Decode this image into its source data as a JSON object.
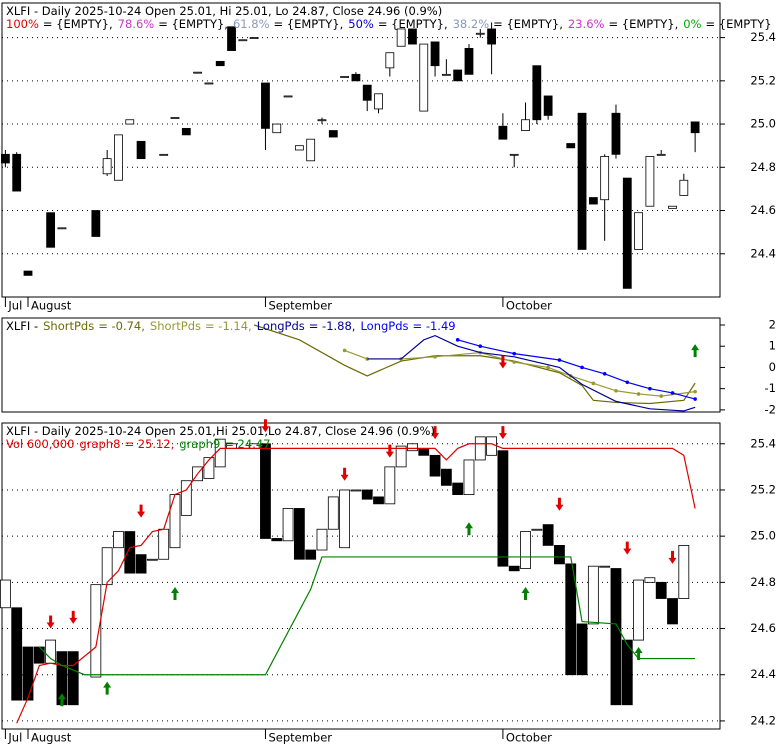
{
  "chart_data": [
    {
      "type": "candlestick",
      "title": "XLFI - Daily 2025-10-24 Open 25.01, Hi 25.01, Lo 24.87, Close 24.96 (0.9%)",
      "fib_levels": [
        {
          "level": "100%",
          "text": "= {EMPTY},",
          "color": "#e00000"
        },
        {
          "level": "78.6%",
          "text": "= {EMPTY},",
          "color": "#cc33cc"
        },
        {
          "level": "61.8%",
          "text": "= {EMPTY},",
          "color": "#8899bb"
        },
        {
          "level": "50%",
          "text": "= {EMPTY},",
          "color": "#0000cc"
        },
        {
          "level": "38.2%",
          "text": "= {EMPTY},",
          "color": "#8899bb"
        },
        {
          "level": "23.6%",
          "text": "= {EMPTY},",
          "color": "#cc33cc"
        },
        {
          "level": "0%",
          "text": "= {EMPTY}",
          "color": "#00aa00"
        }
      ],
      "x": [
        0,
        1,
        2,
        4,
        5,
        8,
        9,
        10,
        11,
        12,
        14,
        15,
        16,
        17,
        18,
        19,
        20,
        21,
        22,
        23,
        24,
        25,
        26,
        27,
        28,
        29,
        30,
        31,
        32,
        33,
        34,
        35,
        36,
        37,
        38,
        39,
        40,
        41,
        42,
        43,
        44,
        45,
        46,
        47,
        48,
        50,
        51,
        52,
        53,
        54,
        55,
        56,
        57,
        58,
        59,
        60,
        61
      ],
      "open": [
        24.86,
        24.86,
        24.32,
        24.59,
        24.52,
        24.6,
        24.77,
        24.74,
        25.0,
        24.92,
        24.86,
        25.03,
        24.98,
        25.24,
        25.19,
        25.29,
        25.45,
        25.39,
        25.4,
        25.19,
        24.96,
        25.13,
        24.88,
        24.83,
        25.02,
        24.97,
        25.22,
        25.23,
        25.18,
        25.07,
        25.26,
        25.36,
        25.44,
        25.06,
        25.38,
        25.23,
        25.25,
        25.35,
        25.42,
        25.44,
        24.99,
        24.86,
        24.97,
        25.27,
        25.13,
        24.91,
        25.05,
        24.66,
        24.65,
        25.05,
        24.75,
        24.42,
        24.62,
        24.86,
        24.61,
        24.67,
        25.01
      ],
      "high": [
        24.88,
        24.87,
        24.32,
        24.59,
        24.52,
        24.6,
        24.88,
        24.95,
        25.02,
        24.92,
        24.86,
        25.03,
        24.98,
        25.24,
        25.19,
        25.29,
        25.45,
        25.39,
        25.4,
        25.19,
        25.0,
        25.13,
        24.9,
        24.93,
        25.03,
        24.97,
        25.22,
        25.24,
        25.18,
        25.14,
        25.33,
        25.44,
        25.44,
        25.37,
        25.38,
        25.3,
        25.25,
        25.37,
        25.44,
        25.47,
        25.05,
        24.86,
        25.1,
        25.27,
        25.13,
        24.91,
        25.05,
        24.66,
        24.86,
        25.09,
        24.75,
        24.59,
        24.85,
        24.88,
        24.62,
        24.77,
        25.01
      ],
      "low": [
        24.8,
        24.69,
        24.3,
        24.43,
        24.52,
        24.48,
        24.76,
        24.74,
        25.0,
        24.84,
        24.86,
        25.03,
        24.95,
        25.24,
        25.19,
        25.27,
        25.34,
        25.39,
        25.4,
        24.88,
        24.96,
        25.13,
        24.88,
        24.83,
        25.0,
        24.94,
        25.22,
        25.2,
        25.06,
        25.05,
        25.22,
        25.36,
        25.37,
        25.06,
        25.22,
        25.23,
        25.2,
        25.23,
        25.4,
        25.23,
        24.93,
        24.8,
        24.97,
        25.0,
        25.02,
        24.89,
        24.42,
        24.63,
        24.46,
        24.84,
        24.24,
        24.42,
        24.62,
        24.86,
        24.61,
        24.67,
        24.87
      ],
      "close": [
        24.82,
        24.69,
        24.3,
        24.43,
        24.52,
        24.48,
        24.84,
        24.95,
        25.02,
        24.84,
        24.86,
        25.03,
        24.95,
        25.24,
        25.19,
        25.27,
        25.34,
        25.39,
        25.4,
        24.98,
        25.0,
        25.13,
        24.9,
        24.93,
        25.02,
        24.94,
        25.22,
        25.2,
        25.11,
        25.14,
        25.33,
        25.44,
        25.37,
        25.37,
        25.27,
        25.23,
        25.2,
        25.23,
        25.42,
        25.37,
        24.93,
        24.86,
        25.02,
        25.02,
        25.04,
        24.89,
        24.42,
        24.63,
        24.85,
        24.86,
        24.24,
        24.59,
        24.85,
        24.86,
        24.62,
        24.74,
        24.96
      ],
      "up_color": "#ffffff",
      "down_color": "#000000",
      "xlim": [
        -0.3,
        63.2
      ],
      "ylim": [
        24.2,
        25.56
      ],
      "yticks": [
        25.4,
        25.2,
        {
          "value": 25,
          "label": "25.0"
        },
        24.8,
        24.6,
        24.4
      ],
      "xticks": [
        {
          "value": 0,
          "label": "Jul"
        },
        {
          "value": 2,
          "label": "August"
        },
        {
          "value": 23,
          "label": "September"
        },
        {
          "value": 44,
          "label": "October"
        }
      ],
      "grid": true
    },
    {
      "type": "line",
      "title": "XLFI -",
      "series": [
        {
          "name": "ShortPds",
          "label": "= -0.74,",
          "color": "#6b6b00",
          "markers": false,
          "x": [
            22,
            26,
            30,
            32,
            35,
            38,
            42,
            45,
            49,
            51,
            52,
            54,
            57,
            60,
            61
          ],
          "values": [
            2.0,
            1.3,
            0.1,
            -0.4,
            0.3,
            0.55,
            0.55,
            0.3,
            -0.25,
            -0.85,
            -1.55,
            -1.65,
            -1.7,
            -1.55,
            -0.74
          ]
        },
        {
          "name": "ShortPds",
          "label": "= -1.14,",
          "color": "#999933",
          "markers": true,
          "x": [
            30,
            32,
            35,
            38,
            42,
            45,
            48,
            50,
            52,
            54,
            56,
            58,
            61
          ],
          "values": [
            0.8,
            0.4,
            0.4,
            0.5,
            0.7,
            0.25,
            0.0,
            -0.4,
            -0.75,
            -1.1,
            -1.25,
            -1.35,
            -1.14
          ]
        },
        {
          "name": "LongPds",
          "label": "= -1.88,",
          "color": "#000099",
          "markers": false,
          "x": [
            32,
            35,
            37,
            38,
            40,
            42,
            45,
            49,
            51,
            54,
            57,
            60,
            61
          ],
          "values": [
            0.4,
            0.4,
            1.3,
            1.5,
            1.0,
            0.7,
            0.5,
            0.0,
            -0.8,
            -1.6,
            -1.95,
            -2.05,
            -1.88
          ]
        },
        {
          "name": "LongPds",
          "label": "= -1.49",
          "color": "#0000ff",
          "markers": true,
          "x": [
            40,
            42,
            45,
            49,
            51,
            53,
            55,
            57,
            59,
            61
          ],
          "values": [
            1.3,
            1.0,
            0.65,
            0.35,
            0.0,
            -0.3,
            -0.7,
            -1.0,
            -1.2,
            -1.49
          ]
        }
      ],
      "arrows": [
        {
          "x": 44,
          "y": -0.05,
          "dir": "down"
        },
        {
          "x": 61,
          "y": 1.1,
          "dir": "up"
        }
      ],
      "arrow_colors": {
        "down": "#e00000",
        "up": "#008000"
      },
      "xlim": [
        -0.3,
        63.2
      ],
      "ylim": [
        -2.1,
        2.33
      ],
      "yticks": [
        2,
        1,
        0,
        -1,
        -2
      ]
    },
    {
      "type": "candlestick",
      "title": "XLFI - Daily 2025-10-24 Open 25.01,Hi 25.01,Lo 24.87, Close 24.96 (0.9%)",
      "volume_label": "Vol 600,000",
      "volume_color": "#dd0000",
      "x": [
        0,
        1,
        2,
        3,
        4,
        5,
        6,
        8,
        9,
        10,
        11,
        12,
        13,
        14,
        15,
        16,
        17,
        18,
        19,
        20,
        22,
        23,
        24,
        25,
        26,
        27,
        28,
        29,
        30,
        31,
        32,
        33,
        34,
        35,
        36,
        37,
        38,
        39,
        40,
        41,
        42,
        43,
        44,
        45,
        46,
        47,
        48,
        49,
        50,
        51,
        52,
        53,
        54,
        55,
        56,
        57,
        58,
        59,
        60
      ],
      "open": [
        24.69,
        24.69,
        24.52,
        24.52,
        24.45,
        24.5,
        24.5,
        24.39,
        24.79,
        24.95,
        25.02,
        24.92,
        24.9,
        24.9,
        24.95,
        25.09,
        25.24,
        25.25,
        25.3,
        25.38,
        25.38,
        25.4,
        24.99,
        24.98,
        25.12,
        24.94,
        24.94,
        25.03,
        24.95,
        25.2,
        25.2,
        25.17,
        25.14,
        25.3,
        25.37,
        25.38,
        25.35,
        25.29,
        25.23,
        25.18,
        25.33,
        25.35,
        25.37,
        24.87,
        24.86,
        25.03,
        25.05,
        24.96,
        24.88,
        24.62,
        24.62,
        24.87,
        24.86,
        24.55,
        24.55,
        24.8,
        24.8,
        24.73,
        24.73
      ],
      "close": [
        24.81,
        24.29,
        24.29,
        24.45,
        24.55,
        24.27,
        24.27,
        24.79,
        24.95,
        25.02,
        24.84,
        24.84,
        24.9,
        25.03,
        25.18,
        25.24,
        25.3,
        25.34,
        25.42,
        25.4,
        25.4,
        24.99,
        24.98,
        25.12,
        24.9,
        24.9,
        25.03,
        25.17,
        25.2,
        25.2,
        25.16,
        25.14,
        25.3,
        25.39,
        25.4,
        25.35,
        25.26,
        25.22,
        25.18,
        25.33,
        25.43,
        25.43,
        24.87,
        24.85,
        25.02,
        25.03,
        24.96,
        24.88,
        24.4,
        24.4,
        24.87,
        24.87,
        24.27,
        24.27,
        24.81,
        24.82,
        24.73,
        24.62,
        24.96
      ],
      "up_color": "#ffffff",
      "down_color": "#000000",
      "series": [
        {
          "name": "graph8",
          "label": "= 25.12,",
          "color": "#dd0000",
          "x": [
            1,
            2,
            3,
            4,
            5,
            6,
            7,
            8,
            9,
            10,
            11,
            12,
            13,
            14,
            15,
            16,
            17,
            18,
            19,
            20,
            22,
            38,
            39,
            40,
            41,
            43,
            44,
            59,
            60,
            61
          ],
          "values": [
            24.19,
            24.3,
            24.44,
            24.45,
            24.44,
            24.44,
            24.48,
            24.52,
            24.8,
            24.85,
            24.95,
            24.96,
            25.02,
            25.03,
            25.18,
            25.2,
            25.27,
            25.33,
            25.38,
            25.38,
            25.38,
            25.38,
            25.33,
            25.38,
            25.4,
            25.4,
            25.38,
            25.38,
            25.35,
            25.12
          ]
        },
        {
          "name": "graph9",
          "label": "= 24.47",
          "color": "#008000",
          "x": [
            3,
            4,
            5,
            6,
            7,
            23,
            27,
            28,
            50,
            51,
            54,
            55,
            56,
            61
          ],
          "values": [
            24.52,
            24.47,
            24.44,
            24.42,
            24.4,
            24.4,
            24.77,
            24.91,
            24.91,
            24.63,
            24.62,
            24.53,
            24.47,
            24.47
          ]
        }
      ],
      "arrows": [
        {
          "x": 4,
          "y": 24.6,
          "dir": "down"
        },
        {
          "x": 6,
          "y": 24.62,
          "dir": "down"
        },
        {
          "x": 12,
          "y": 25.08,
          "dir": "down"
        },
        {
          "x": 23,
          "y": 25.45,
          "dir": "down"
        },
        {
          "x": 30,
          "y": 25.24,
          "dir": "down"
        },
        {
          "x": 34,
          "y": 25.34,
          "dir": "down"
        },
        {
          "x": 38,
          "y": 25.42,
          "dir": "down"
        },
        {
          "x": 44,
          "y": 25.42,
          "dir": "down"
        },
        {
          "x": 49,
          "y": 25.11,
          "dir": "down"
        },
        {
          "x": 55,
          "y": 24.92,
          "dir": "down"
        },
        {
          "x": 59,
          "y": 24.88,
          "dir": "down"
        },
        {
          "x": 5,
          "y": 24.32,
          "dir": "up"
        },
        {
          "x": 9,
          "y": 24.37,
          "dir": "up"
        },
        {
          "x": 15,
          "y": 24.78,
          "dir": "up"
        },
        {
          "x": 41,
          "y": 25.06,
          "dir": "up"
        },
        {
          "x": 46,
          "y": 24.78,
          "dir": "up"
        },
        {
          "x": 56,
          "y": 24.52,
          "dir": "up"
        }
      ],
      "arrow_colors": {
        "down": "#e00000",
        "up": "#008000"
      },
      "xlim": [
        -0.3,
        63.2
      ],
      "ylim": [
        24.165,
        25.49
      ],
      "yticks": [
        25.4,
        25.2,
        {
          "value": 25,
          "label": "25.0"
        },
        24.8,
        24.6,
        24.4,
        24.2
      ],
      "xticks": [
        {
          "value": 0,
          "label": "Jul"
        },
        {
          "value": 2,
          "label": "August"
        },
        {
          "value": 23,
          "label": "September"
        },
        {
          "value": 44,
          "label": "October"
        }
      ],
      "grid": true
    }
  ]
}
